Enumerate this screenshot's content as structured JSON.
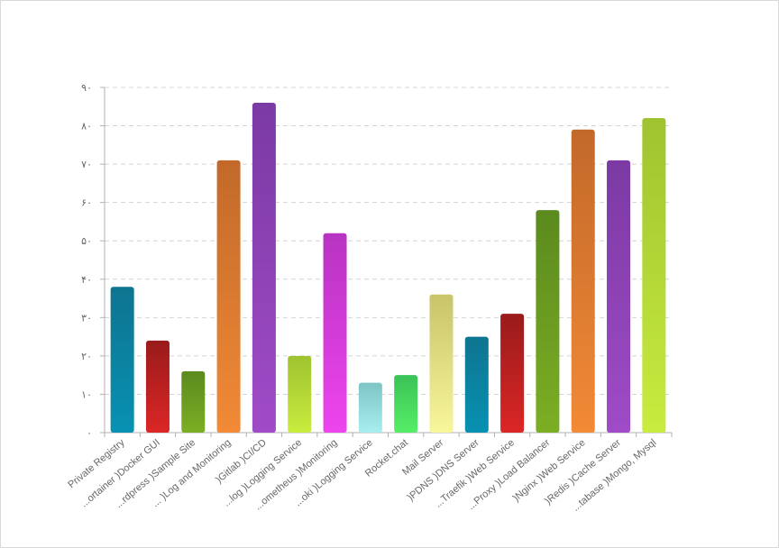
{
  "chart_data": {
    "type": "bar",
    "title": "",
    "xlabel": "",
    "ylabel": "",
    "ylim": [
      0,
      90
    ],
    "y_ticks": [
      "۰",
      "۱۰",
      "۲۰",
      "۳۰",
      "۴۰",
      "۵۰",
      "۶۰",
      "۷۰",
      "۸۰",
      "۹۰"
    ],
    "grid": true,
    "legend": "none",
    "categories": [
      "Private Registry",
      "...ortainer )Docker GUI",
      "...rdpress )Sample Site",
      "... )Log and Monitoring",
      ")Gitlab )CI/CD",
      "...log )Logging Service",
      "...ometheus )Monitoring",
      "...oki )Logging Service",
      "Rocket.chat",
      "Mail Server",
      ")PDNS )DNS Server",
      "...Traefik )Web Service",
      "...Proxy )Load Balancer",
      ")Nginx )Web Service",
      ")Redis )Cache Server",
      "...tabase )Mongo, Mysql"
    ],
    "values": [
      38,
      24,
      16,
      71,
      86,
      20,
      52,
      13,
      15,
      36,
      25,
      31,
      58,
      79,
      71,
      82
    ],
    "colors": [
      [
        "#0891b2",
        "#0e7490"
      ],
      [
        "#dc2626",
        "#991b1b"
      ],
      [
        "#7cae24",
        "#5b8a1e"
      ],
      [
        "#f28a36",
        "#c2692a"
      ],
      [
        "#a04bc7",
        "#7b3aa3"
      ],
      [
        "#c9ec3f",
        "#9fc32f"
      ],
      [
        "#ee44ee",
        "#b833c2"
      ],
      [
        "#a8eeee",
        "#7ec4c4"
      ],
      [
        "#55ee66",
        "#3bc257"
      ],
      [
        "#f8f79a",
        "#c9c36a"
      ],
      [
        "#0891b2",
        "#0e7490"
      ],
      [
        "#dc2626",
        "#991b1b"
      ],
      [
        "#7cae24",
        "#5b8a1e"
      ],
      [
        "#f28a36",
        "#c2692a"
      ],
      [
        "#a04bc7",
        "#7b3aa3"
      ],
      [
        "#c9ec3f",
        "#9fc32f"
      ]
    ]
  }
}
